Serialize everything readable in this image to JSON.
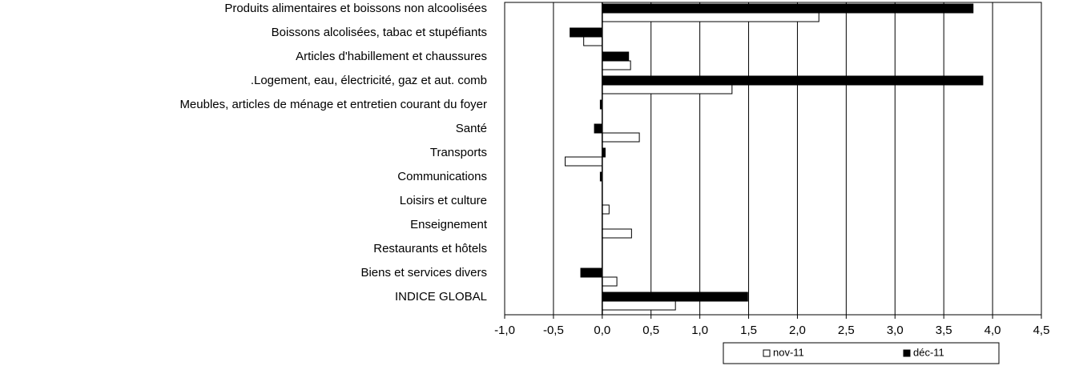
{
  "chart_data": {
    "type": "barh",
    "categories": [
      "Produits alimentaires et boissons non alcoolisées",
      "Boissons alcolisées, tabac et stupéfiants",
      "Articles d'habillement et chaussures",
      ".Logement, eau, électricité, gaz et aut. comb",
      "Meubles, articles de ménage et entretien courant du foyer",
      "Santé",
      "Transports",
      "Communications",
      "Loisirs et culture",
      "Enseignement",
      "Restaurants et hôtels",
      "Biens et services divers",
      "INDICE GLOBAL"
    ],
    "series": [
      {
        "name": "nov-11",
        "color": "#ffffff",
        "values": [
          2.22,
          -0.19,
          0.29,
          1.33,
          0,
          0.38,
          -0.38,
          0,
          0.07,
          0.3,
          0,
          0.15,
          0.75
        ]
      },
      {
        "name": "déc-11",
        "color": "#000000",
        "values": [
          3.8,
          -0.33,
          0.27,
          3.9,
          -0.02,
          -0.08,
          0.03,
          -0.02,
          0,
          0,
          0,
          -0.22,
          1.49
        ]
      }
    ],
    "xlim": [
      -1,
      4.5
    ],
    "xticks": [
      {
        "value": -1,
        "label": "-1,0"
      },
      {
        "value": -0.5,
        "label": "-0,5"
      },
      {
        "value": 0,
        "label": "0,0"
      },
      {
        "value": 0.5,
        "label": "0,5"
      },
      {
        "value": 1,
        "label": "1,0"
      },
      {
        "value": 1.5,
        "label": "1,5"
      },
      {
        "value": 2,
        "label": "2,0"
      },
      {
        "value": 2.5,
        "label": "2,5"
      },
      {
        "value": 3,
        "label": "3,0"
      },
      {
        "value": 3.5,
        "label": "3,5"
      },
      {
        "value": 4,
        "label": "4,0"
      },
      {
        "value": 4.5,
        "label": "4,5"
      }
    ],
    "grid": true,
    "legend": "bottom"
  }
}
